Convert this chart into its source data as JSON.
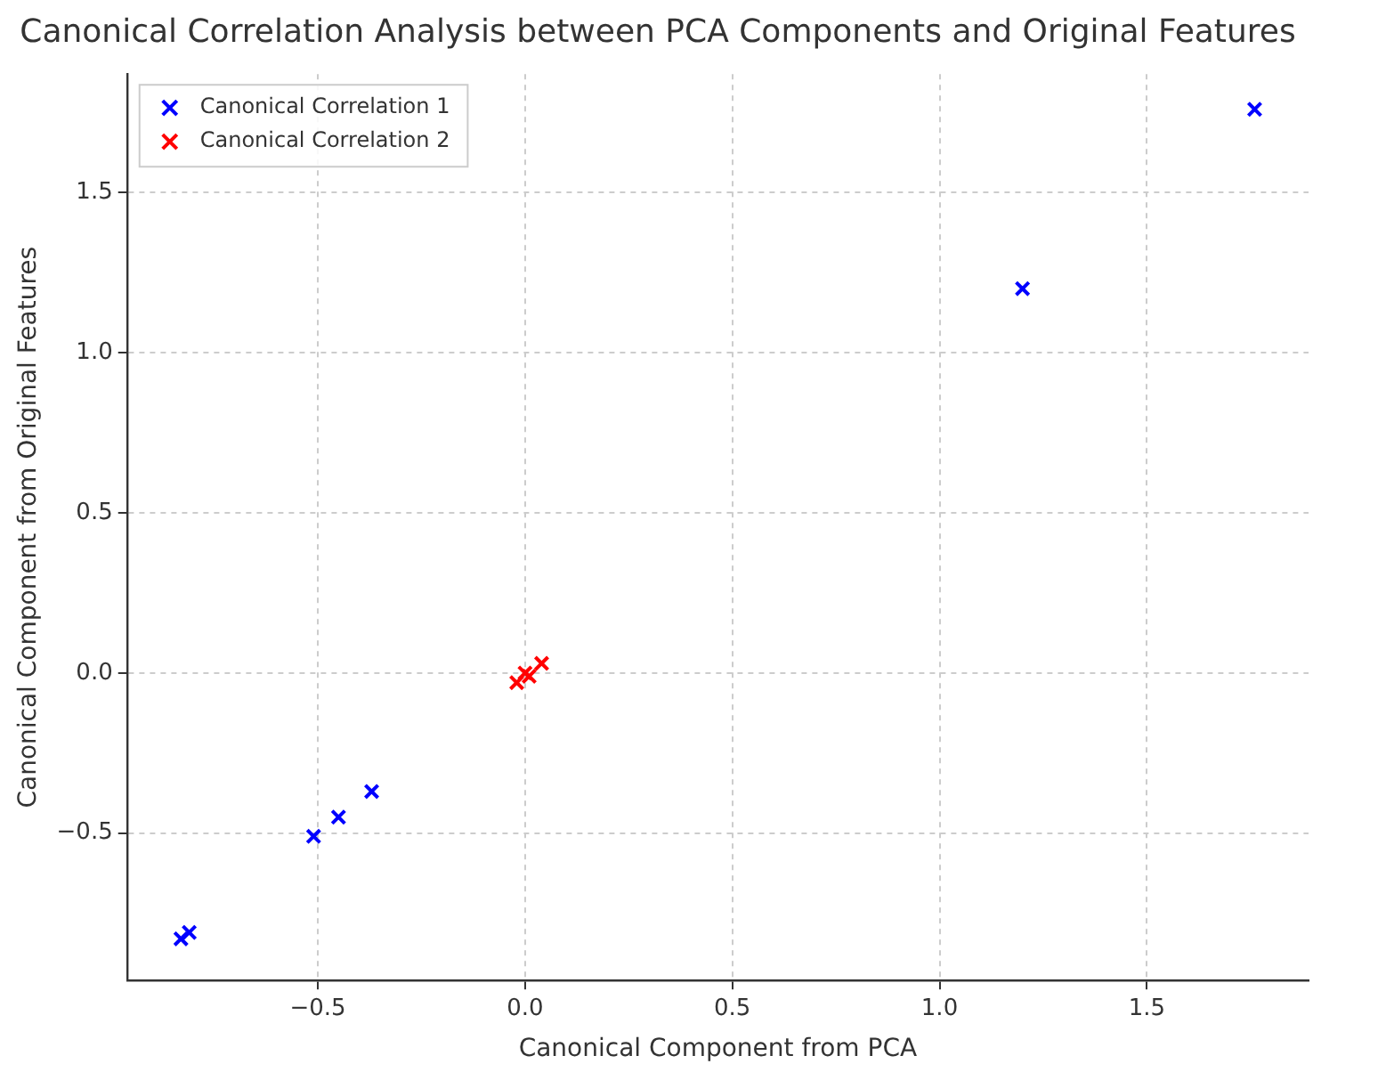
{
  "chart_data": {
    "type": "scatter",
    "title": "Canonical Correlation Analysis between PCA Components and Original Features",
    "xlabel": "Canonical Component from PCA",
    "ylabel": "Canonical Component from Original Features",
    "series": [
      {
        "name": "Canonical Correlation 1",
        "color": "#0000ff",
        "x": [
          -0.83,
          -0.81,
          -0.51,
          -0.45,
          -0.37,
          1.2,
          1.76
        ],
        "values": [
          -0.83,
          -0.81,
          -0.51,
          -0.45,
          -0.37,
          1.2,
          1.76
        ]
      },
      {
        "name": "Canonical Correlation 2",
        "color": "#ff0000",
        "x": [
          -0.02,
          0.0,
          0.01,
          0.04
        ],
        "values": [
          -0.03,
          0.0,
          -0.01,
          0.03
        ]
      }
    ],
    "xlim": [
      -0.96,
      1.89
    ],
    "ylim": [
      -0.96,
      1.87
    ],
    "xticks": [
      {
        "value": -0.5,
        "label": "−0.5"
      },
      {
        "value": 0,
        "label": "0.0"
      },
      {
        "value": 0.5,
        "label": "0.5"
      },
      {
        "value": 1,
        "label": "1.0"
      },
      {
        "value": 1.5,
        "label": "1.5"
      }
    ],
    "yticks": [
      {
        "value": -0.5,
        "label": "−0.5"
      },
      {
        "value": 0,
        "label": "0.0"
      },
      {
        "value": 0.5,
        "label": "0.5"
      },
      {
        "value": 1,
        "label": "1.0"
      },
      {
        "value": 1.5,
        "label": "1.5"
      }
    ],
    "grid": true,
    "legend": "top left",
    "marker": "cross"
  }
}
